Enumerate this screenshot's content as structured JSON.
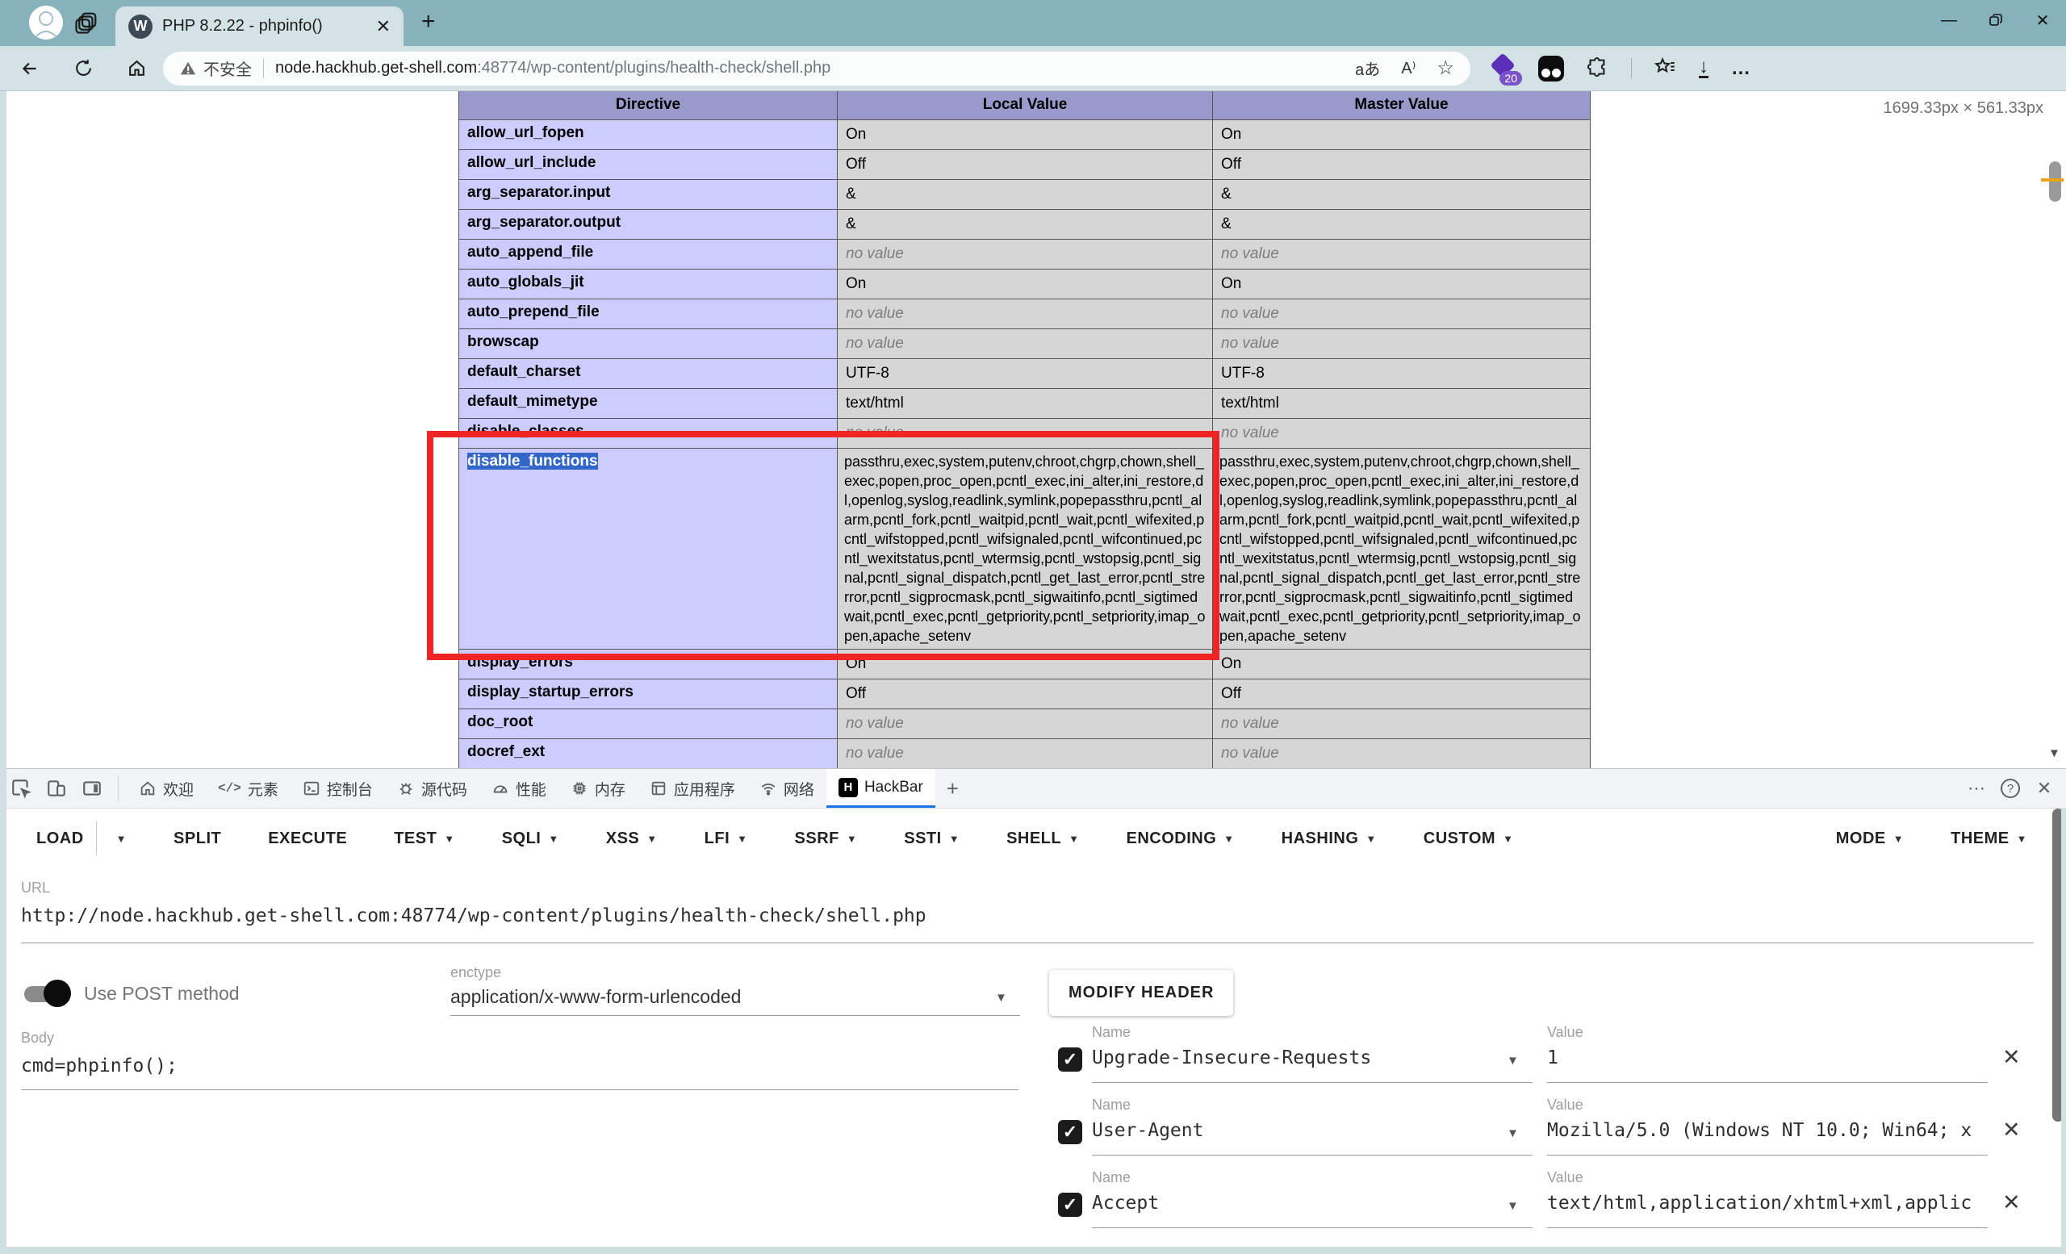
{
  "browser": {
    "tab_title": "PHP 8.2.22 - phpinfo()",
    "security_label": "不安全",
    "url_host": "node.hackhub.get-shell.com",
    "url_path": ":48774/wp-content/plugins/health-check/shell.php",
    "translate_label": "aあ",
    "read_aloud_label": "A⁾",
    "extension_badge": "20",
    "dimension_overlay": "1699.33px × 561.33px"
  },
  "phpinfo": {
    "columns": [
      "Directive",
      "Local Value",
      "Master Value"
    ],
    "disable_functions_value": "passthru,exec,system,putenv,chroot,chgrp,chown,shell_exec,popen,proc_open,pcntl_exec,ini_alter,ini_restore,dl,openlog,syslog,readlink,symlink,popepassthru,pcntl_alarm,pcntl_fork,pcntl_waitpid,pcntl_wait,pcntl_wifexited,pcntl_wifstopped,pcntl_wifsignaled,pcntl_wifcontinued,pcntl_wexitstatus,pcntl_wtermsig,pcntl_wstopsig,pcntl_signal,pcntl_signal_dispatch,pcntl_get_last_error,pcntl_strerror,pcntl_sigprocmask,pcntl_sigwaitinfo,pcntl_sigtimedwait,pcntl_exec,pcntl_getpriority,pcntl_setpriority,imap_open,apache_setenv",
    "rows": [
      {
        "directive": "allow_url_fopen",
        "local": "On",
        "master": "On"
      },
      {
        "directive": "allow_url_include",
        "local": "Off",
        "master": "Off"
      },
      {
        "directive": "arg_separator.input",
        "local": "&",
        "master": "&"
      },
      {
        "directive": "arg_separator.output",
        "local": "&",
        "master": "&"
      },
      {
        "directive": "auto_append_file",
        "local": "no value",
        "master": "no value"
      },
      {
        "directive": "auto_globals_jit",
        "local": "On",
        "master": "On"
      },
      {
        "directive": "auto_prepend_file",
        "local": "no value",
        "master": "no value"
      },
      {
        "directive": "browscap",
        "local": "no value",
        "master": "no value"
      },
      {
        "directive": "default_charset",
        "local": "UTF-8",
        "master": "UTF-8"
      },
      {
        "directive": "default_mimetype",
        "local": "text/html",
        "master": "text/html"
      },
      {
        "directive": "disable_classes",
        "local": "no value",
        "master": "no value"
      },
      {
        "directive": "disable_functions",
        "long": true,
        "selected": true
      },
      {
        "directive": "display_errors",
        "local": "On",
        "master": "On"
      },
      {
        "directive": "display_startup_errors",
        "local": "Off",
        "master": "Off"
      },
      {
        "directive": "doc_root",
        "local": "no value",
        "master": "no value"
      },
      {
        "directive": "docref_ext",
        "local": "no value",
        "master": "no value"
      }
    ]
  },
  "devtools": {
    "tabs": [
      {
        "label": "欢迎",
        "icon": "home"
      },
      {
        "label": "元素",
        "icon": "elements"
      },
      {
        "label": "控制台",
        "icon": "console"
      },
      {
        "label": "源代码",
        "icon": "sources"
      },
      {
        "label": "性能",
        "icon": "performance"
      },
      {
        "label": "内存",
        "icon": "memory"
      },
      {
        "label": "应用程序",
        "icon": "application"
      },
      {
        "label": "网络",
        "icon": "network"
      },
      {
        "label": "HackBar",
        "icon": "hackbar",
        "active": true
      }
    ]
  },
  "hackbar": {
    "menu": [
      {
        "label": "LOAD",
        "caret": true,
        "split": true
      },
      {
        "label": "SPLIT"
      },
      {
        "label": "EXECUTE"
      },
      {
        "label": "TEST",
        "caret": true
      },
      {
        "label": "SQLI",
        "caret": true
      },
      {
        "label": "XSS",
        "caret": true
      },
      {
        "label": "LFI",
        "caret": true
      },
      {
        "label": "SSRF",
        "caret": true
      },
      {
        "label": "SSTI",
        "caret": true
      },
      {
        "label": "SHELL",
        "caret": true
      },
      {
        "label": "ENCODING",
        "caret": true
      },
      {
        "label": "HASHING",
        "caret": true
      },
      {
        "label": "CUSTOM",
        "caret": true
      }
    ],
    "menu_right": [
      {
        "label": "MODE",
        "caret": true
      },
      {
        "label": "THEME",
        "caret": true
      }
    ],
    "url_label": "URL",
    "url_value": "http://node.hackhub.get-shell.com:48774/wp-content/plugins/health-check/shell.php",
    "post_toggle_label": "Use POST method",
    "enctype_label": "enctype",
    "enctype_value": "application/x-www-form-urlencoded",
    "modify_header_label": "MODIFY HEADER",
    "body_label": "Body",
    "body_value": "cmd=phpinfo();",
    "headers": [
      {
        "name_label": "Name",
        "name": "Upgrade-Insecure-Requests",
        "value_label": "Value",
        "value": "1",
        "checked": true
      },
      {
        "name_label": "Name",
        "name": "User-Agent",
        "value_label": "Value",
        "value": "Mozilla/5.0 (Windows NT 10.0; Win64; x",
        "checked": true
      },
      {
        "name_label": "Name",
        "name": "Accept",
        "value_label": "Value",
        "value": "text/html,application/xhtml+xml,applic",
        "checked": true
      }
    ]
  }
}
